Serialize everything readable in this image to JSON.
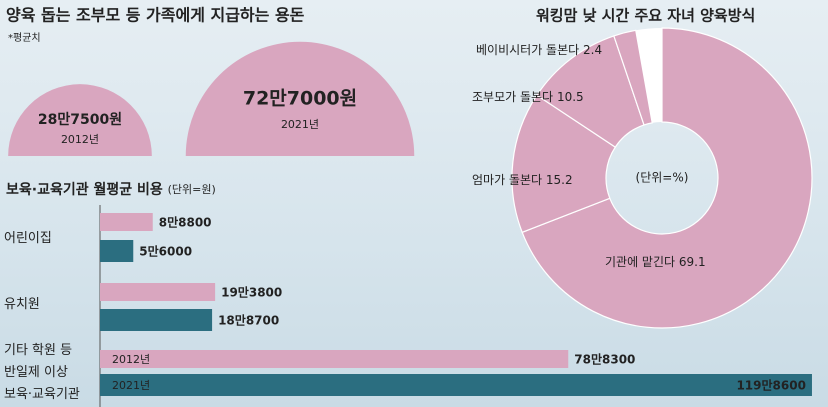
{
  "chart_data": [
    {
      "type": "semicircle",
      "title": "양육 돕는 조부모 등 가족에게 지급하는 용돈",
      "note": "*평균치",
      "categories": [
        "2012년",
        "2021년"
      ],
      "values": [
        287500,
        727000
      ],
      "value_labels": [
        "28만7500원",
        "72만7000원"
      ],
      "color": "#d9a6bf"
    },
    {
      "type": "bar",
      "title": "보육·교육기관 월평균 비용",
      "unit": "(단위=원)",
      "categories": [
        "어린이집",
        "유치원",
        "기타 학원 등\n반일제 이상\n보육·교육기관"
      ],
      "series": [
        {
          "name": "2012년",
          "color": "#d9a6bf",
          "values": [
            88800,
            193800,
            788300
          ],
          "value_labels": [
            "8만8800",
            "19만3800",
            "78만8300"
          ]
        },
        {
          "name": "2021년",
          "color": "#2b6e80",
          "values": [
            56000,
            188700,
            1198600
          ],
          "value_labels": [
            "5만6000",
            "18만8700",
            "119만8600"
          ]
        }
      ]
    },
    {
      "type": "donut",
      "title": "워킹맘 낮 시간 주요 자녀 양육방식",
      "unit": "(단위=%)",
      "categories": [
        "기관에 맡긴다",
        "엄마가 돌본다",
        "조부모가 돌본다",
        "베이비시터가 돌본다"
      ],
      "values": [
        69.1,
        15.2,
        10.5,
        2.4
      ],
      "color": "#d9a6bf"
    }
  ]
}
